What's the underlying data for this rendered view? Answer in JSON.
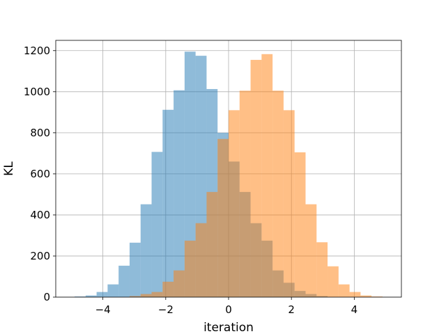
{
  "chart_data": {
    "type": "bar",
    "xlabel": "iteration",
    "ylabel": "KL",
    "xlim": [
      -5.5,
      5.5
    ],
    "ylim": [
      0,
      1250
    ],
    "grid": true,
    "xticks": [
      -4,
      -2,
      0,
      2,
      4
    ],
    "yticks": [
      0,
      200,
      400,
      600,
      800,
      1000,
      1200
    ],
    "series": [
      {
        "color": "#1f77b4",
        "opacity": 0.5,
        "bin_edges": [
          -4.9,
          -4.55,
          -4.2,
          -3.85,
          -3.5,
          -3.15,
          -2.8,
          -2.45,
          -2.1,
          -1.75,
          -1.4,
          -1.05,
          -0.7,
          -0.35,
          0.0,
          0.35,
          0.7,
          1.05,
          1.4,
          1.75,
          2.1,
          2.45,
          2.8,
          3.15
        ],
        "counts": [
          3,
          8,
          25,
          62,
          153,
          265,
          452,
          707,
          912,
          1007,
          1195,
          1175,
          1013,
          800,
          660,
          512,
          360,
          275,
          130,
          70,
          30,
          15,
          5
        ]
      },
      {
        "color": "#ff7f0e",
        "opacity": 0.5,
        "bin_edges": [
          -3.15,
          -2.8,
          -2.45,
          -2.1,
          -1.75,
          -1.4,
          -1.05,
          -0.7,
          -0.35,
          0.0,
          0.35,
          0.7,
          1.05,
          1.4,
          1.75,
          2.1,
          2.45,
          2.8,
          3.15,
          3.5,
          3.85,
          4.2,
          4.55,
          4.9
        ],
        "counts": [
          5,
          15,
          25,
          75,
          130,
          275,
          360,
          512,
          770,
          910,
          1005,
          1155,
          1183,
          1005,
          910,
          705,
          452,
          267,
          150,
          62,
          25,
          8,
          3
        ]
      }
    ]
  }
}
